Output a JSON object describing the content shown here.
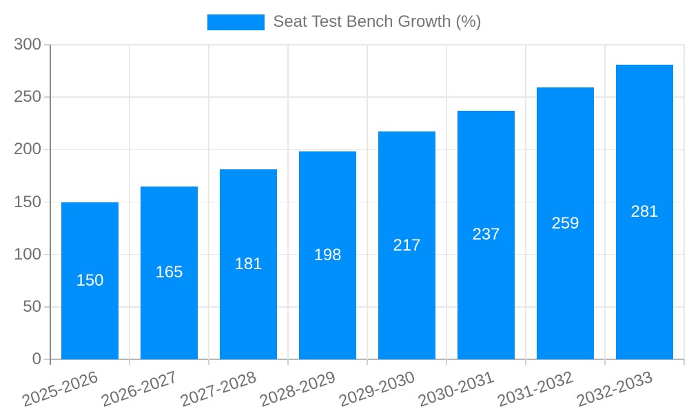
{
  "chart_data": {
    "type": "bar",
    "title": "Seat Test Bench Growth (%)",
    "categories": [
      "2025-2026",
      "2026-2027",
      "2027-2028",
      "2028-2029",
      "2029-2030",
      "2030-2031",
      "2031-2032",
      "2032-2033"
    ],
    "values": [
      150,
      165,
      181,
      198,
      217,
      237,
      259,
      281
    ],
    "series": [
      {
        "name": "Seat Test Bench Growth (%)",
        "values": [
          150,
          165,
          181,
          198,
          217,
          237,
          259,
          281
        ]
      }
    ],
    "xlabel": "",
    "ylabel": "",
    "ylim": [
      0,
      300
    ],
    "yticks": [
      0,
      50,
      100,
      150,
      200,
      250,
      300
    ],
    "grid": true,
    "legend_position": "top",
    "x_label_rotation": -19,
    "value_labels": "inside-center",
    "colors": {
      "bar": "#008FFB",
      "bar_value_label": "#FFFFFF",
      "axis_text": "#6E6E6E",
      "legend_text": "#757575",
      "gridline": "#E8E8E8",
      "y_axis_line": "#8A8A8A",
      "x_axis_line": "#B6B6B6",
      "tick": "#CFCFCF"
    }
  }
}
